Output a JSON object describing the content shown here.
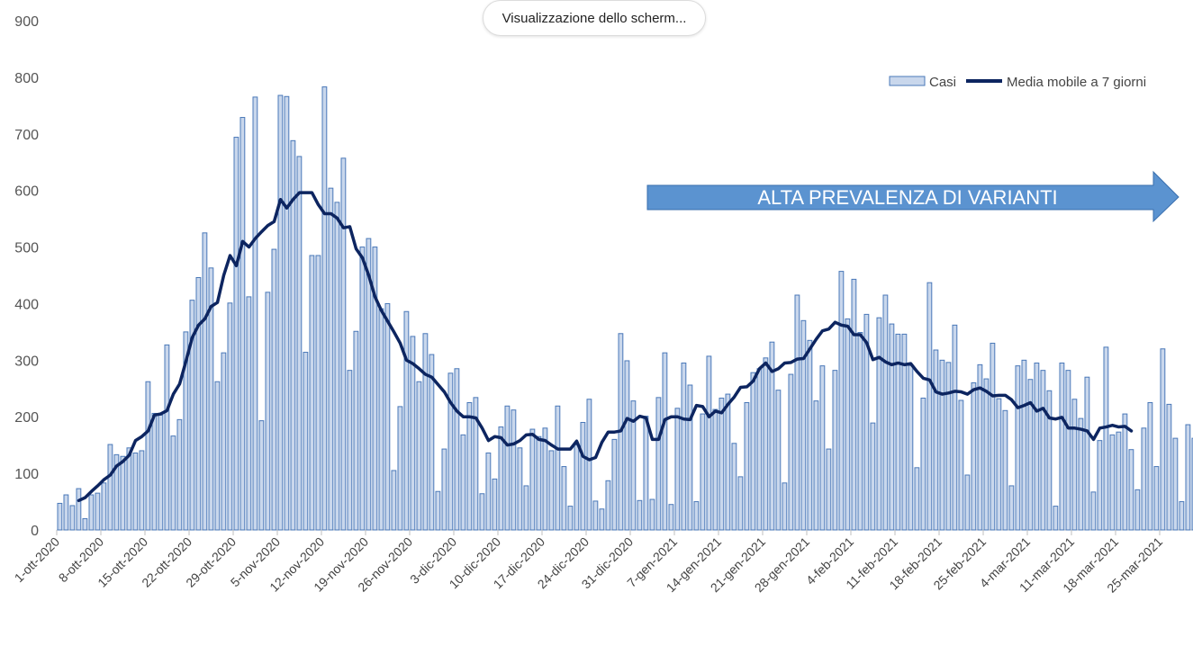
{
  "window": {
    "share_label": "Visualizzazione dello scherm..."
  },
  "chart_data": {
    "type": "bar",
    "start_date": "2020-10-01",
    "ylim": [
      0,
      900
    ],
    "yticks": [
      0,
      100,
      200,
      300,
      400,
      500,
      600,
      700,
      800,
      900
    ],
    "xtick_labels": [
      "1-ott-2020",
      "8-ott-2020",
      "15-ott-2020",
      "22-ott-2020",
      "29-ott-2020",
      "5-nov-2020",
      "12-nov-2020",
      "19-nov-2020",
      "26-nov-2020",
      "3-dic-2020",
      "10-dic-2020",
      "17-dic-2020",
      "24-dic-2020",
      "31-dic-2020",
      "7-gen-2021",
      "14-gen-2021",
      "21-gen-2021",
      "28-gen-2021",
      "4-feb-2021",
      "11-feb-2021",
      "18-feb-2021",
      "25-feb-2021",
      "4-mar-2021",
      "11-mar-2021",
      "18-mar-2021",
      "25-mar-2021"
    ],
    "legend": {
      "bars": "Casi",
      "line": "Media mobile a 7 giorni",
      "position": "top-right"
    },
    "annotation": "ALTA PREVALENZA DI VARIANTI",
    "colors": {
      "bar_fill": "#c9d7ec",
      "bar_stroke": "#4a78b8",
      "line": "#0d2560",
      "arrow": "#5b93d0",
      "axis": "#bfbfbf"
    },
    "series": [
      {
        "name": "Casi",
        "kind": "bar",
        "values": [
          47,
          62,
          43,
          73,
          20,
          62,
          65,
          83,
          151,
          133,
          130,
          145,
          136,
          140,
          262,
          206,
          203,
          327,
          166,
          195,
          350,
          406,
          446,
          525,
          463,
          262,
          313,
          401,
          694,
          729,
          412,
          765,
          193,
          420,
          496,
          768,
          766,
          688,
          660,
          314,
          485,
          485,
          783,
          604,
          579,
          657,
          282,
          351,
          500,
          515,
          500,
          391,
          400,
          105,
          218,
          386,
          342,
          262,
          347,
          310,
          68,
          143,
          277,
          285,
          168,
          225,
          234,
          64,
          136,
          90,
          182,
          219,
          212,
          145,
          78,
          178,
          165,
          180,
          140,
          219,
          112,
          42,
          150,
          190,
          231,
          51,
          37,
          87,
          160,
          347,
          299,
          228,
          52,
          201,
          54,
          234,
          313,
          45,
          215,
          295,
          256,
          50,
          205,
          307,
          213,
          233,
          240,
          153,
          94,
          225,
          278,
          285,
          304,
          332,
          247,
          83,
          275,
          415,
          370,
          335,
          228,
          290,
          143,
          282,
          457,
          373,
          443,
          349,
          381,
          189,
          375,
          415,
          364,
          346,
          346,
          292,
          110,
          233,
          437,
          318,
          300,
          296,
          362,
          229,
          97,
          260,
          292,
          267,
          330,
          232,
          211,
          78,
          290,
          300,
          266,
          295,
          282,
          246,
          42,
          295,
          282,
          231,
          197,
          270,
          67,
          158,
          323,
          168,
          173,
          205,
          142,
          71,
          180,
          225,
          112,
          320,
          222,
          162,
          50,
          186,
          162
        ]
      },
      {
        "name": "Media mobile a 7 giorni",
        "kind": "line",
        "start_index": 3,
        "values": [
          52,
          57,
          68,
          78,
          89,
          97,
          113,
          121,
          132,
          158,
          165,
          175,
          203,
          205,
          211,
          240,
          258,
          298,
          340,
          362,
          373,
          395,
          402,
          450,
          485,
          467,
          510,
          500,
          515,
          527,
          538,
          545,
          584,
          569,
          584,
          596,
          596,
          596,
          575,
          559,
          559,
          551,
          534,
          536,
          497,
          481,
          450,
          412,
          388,
          369,
          350,
          330,
          300,
          294,
          285,
          275,
          270,
          257,
          244,
          225,
          210,
          200,
          200,
          198,
          180,
          158,
          165,
          163,
          150,
          152,
          158,
          168,
          169,
          160,
          158,
          150,
          143,
          143,
          143,
          157,
          130,
          124,
          128,
          155,
          173,
          173,
          175,
          197,
          192,
          201,
          198,
          160,
          160,
          195,
          200,
          200,
          196,
          195,
          220,
          218,
          200,
          210,
          207,
          222,
          235,
          252,
          253,
          263,
          285,
          295,
          280,
          285,
          295,
          296,
          302,
          303,
          320,
          337,
          352,
          355,
          367,
          362,
          360,
          345,
          345,
          331,
          301,
          305,
          297,
          292,
          295,
          292,
          294,
          280,
          268,
          265,
          244,
          240,
          242,
          245,
          244,
          240,
          248,
          251,
          245,
          237,
          238,
          238,
          230,
          216,
          220,
          225,
          210,
          215,
          198,
          196,
          199,
          180,
          180,
          178,
          175,
          160,
          180,
          182,
          185,
          182,
          183,
          175
        ]
      }
    ]
  }
}
